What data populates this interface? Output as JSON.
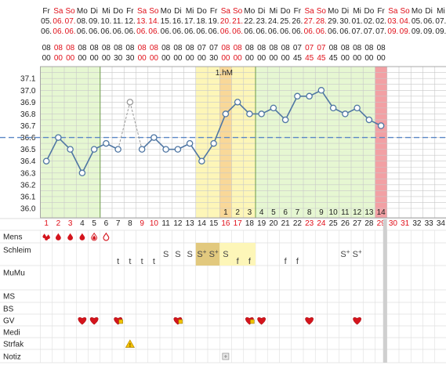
{
  "chart_data": {
    "type": "line",
    "title": "",
    "marker_label": "1.hM",
    "ylim": [
      35.9,
      37.2
    ],
    "y_ticks": [
      "37.1",
      "37.0",
      "36.9",
      "36.8",
      "36.7",
      "36.6",
      "36.5",
      "36.4",
      "36.3",
      "36.2",
      "36.1",
      "36.0"
    ],
    "coverline": 36.6,
    "header_days": [
      {
        "wd": "Fr",
        "d": "05.",
        "m": "06.",
        "h": "08",
        "mm": "00",
        "we": false
      },
      {
        "wd": "Sa",
        "d": "06.",
        "m": "06.",
        "h": "08",
        "mm": "00",
        "we": true
      },
      {
        "wd": "So",
        "d": "07.",
        "m": "06.",
        "h": "08",
        "mm": "00",
        "we": true
      },
      {
        "wd": "Mo",
        "d": "08.",
        "m": "06.",
        "h": "08",
        "mm": "00",
        "we": false
      },
      {
        "wd": "Di",
        "d": "09.",
        "m": "06.",
        "h": "08",
        "mm": "00",
        "we": false
      },
      {
        "wd": "Mi",
        "d": "10.",
        "m": "06.",
        "h": "08",
        "mm": "00",
        "we": false
      },
      {
        "wd": "Do",
        "d": "11.",
        "m": "06.",
        "h": "08",
        "mm": "30",
        "we": false
      },
      {
        "wd": "Fr",
        "d": "12.",
        "m": "06.",
        "h": "08",
        "mm": "30",
        "we": false
      },
      {
        "wd": "Sa",
        "d": "13.",
        "m": "06.",
        "h": "08",
        "mm": "00",
        "we": true
      },
      {
        "wd": "So",
        "d": "14.",
        "m": "06.",
        "h": "08",
        "mm": "00",
        "we": true
      },
      {
        "wd": "Mo",
        "d": "15.",
        "m": "06.",
        "h": "08",
        "mm": "00",
        "we": false
      },
      {
        "wd": "Di",
        "d": "16.",
        "m": "06.",
        "h": "08",
        "mm": "00",
        "we": false
      },
      {
        "wd": "Mi",
        "d": "17.",
        "m": "06.",
        "h": "08",
        "mm": "00",
        "we": false
      },
      {
        "wd": "Do",
        "d": "18.",
        "m": "06.",
        "h": "07",
        "mm": "00",
        "we": false
      },
      {
        "wd": "Fr",
        "d": "19.",
        "m": "06.",
        "h": "07",
        "mm": "30",
        "we": false
      },
      {
        "wd": "Sa",
        "d": "20.",
        "m": "06.",
        "h": "08",
        "mm": "00",
        "we": true
      },
      {
        "wd": "So",
        "d": "21.",
        "m": "06.",
        "h": "08",
        "mm": "00",
        "we": true
      },
      {
        "wd": "Mo",
        "d": "22.",
        "m": "06.",
        "h": "08",
        "mm": "00",
        "we": false
      },
      {
        "wd": "Di",
        "d": "23.",
        "m": "06.",
        "h": "08",
        "mm": "00",
        "we": false
      },
      {
        "wd": "Mi",
        "d": "24.",
        "m": "06.",
        "h": "08",
        "mm": "00",
        "we": false
      },
      {
        "wd": "Do",
        "d": "25.",
        "m": "06.",
        "h": "08",
        "mm": "00",
        "we": false
      },
      {
        "wd": "Fr",
        "d": "26.",
        "m": "06.",
        "h": "07",
        "mm": "45",
        "we": false
      },
      {
        "wd": "Sa",
        "d": "27.",
        "m": "06.",
        "h": "07",
        "mm": "45",
        "we": true
      },
      {
        "wd": "So",
        "d": "28.",
        "m": "06.",
        "h": "07",
        "mm": "45",
        "we": true
      },
      {
        "wd": "Mo",
        "d": "29.",
        "m": "06.",
        "h": "08",
        "mm": "45",
        "we": false
      },
      {
        "wd": "Di",
        "d": "30.",
        "m": "06.",
        "h": "08",
        "mm": "00",
        "we": false
      },
      {
        "wd": "Mi",
        "d": "01.",
        "m": "07.",
        "h": "08",
        "mm": "00",
        "we": false
      },
      {
        "wd": "Do",
        "d": "02.",
        "m": "07.",
        "h": "08",
        "mm": "00",
        "we": false
      },
      {
        "wd": "Fr",
        "d": "02.",
        "m": "07.",
        "h": "08",
        "mm": "00",
        "we": false
      },
      {
        "wd": "Sa",
        "d": "03.",
        "m": "09.",
        "h": "",
        "mm": "",
        "we": true
      },
      {
        "wd": "So",
        "d": "04.",
        "m": "09.",
        "h": "",
        "mm": "",
        "we": true
      },
      {
        "wd": "Mo",
        "d": "05.",
        "m": "09.",
        "h": "",
        "mm": "",
        "we": false
      },
      {
        "wd": "Di",
        "d": "06.",
        "m": "09.",
        "h": "",
        "mm": "",
        "we": false
      },
      {
        "wd": "Mi",
        "d": "07.",
        "m": "09.",
        "h": "",
        "mm": "",
        "we": false
      }
    ],
    "cycle_days": [
      "1",
      "2",
      "3",
      "4",
      "5",
      "6",
      "7",
      "8",
      "9",
      "10",
      "11",
      "12",
      "13",
      "14",
      "15",
      "16",
      "17",
      "18",
      "19",
      "20",
      "21",
      "22",
      "23",
      "24",
      "25",
      "26",
      "27",
      "28",
      "29",
      "30",
      "31",
      "32",
      "33",
      "34"
    ],
    "red_cycle_days": [
      1,
      2,
      3,
      9,
      10,
      16,
      17,
      23,
      24,
      29,
      30,
      31
    ],
    "post_ovulation_counts": [
      "1",
      "2",
      "3",
      "4",
      "5",
      "6",
      "7",
      "8",
      "9",
      "10",
      "11",
      "12",
      "13",
      "14"
    ],
    "temperatures": [
      {
        "day": 1,
        "value": 36.4
      },
      {
        "day": 2,
        "value": 36.6
      },
      {
        "day": 3,
        "value": 36.5
      },
      {
        "day": 4,
        "value": 36.3
      },
      {
        "day": 5,
        "value": 36.5
      },
      {
        "day": 6,
        "value": 36.55
      },
      {
        "day": 7,
        "value": 36.5
      },
      {
        "day": 8,
        "value": 36.9,
        "excluded": true
      },
      {
        "day": 9,
        "value": 36.5
      },
      {
        "day": 10,
        "value": 36.6
      },
      {
        "day": 11,
        "value": 36.5
      },
      {
        "day": 12,
        "value": 36.5
      },
      {
        "day": 13,
        "value": 36.55
      },
      {
        "day": 14,
        "value": 36.4
      },
      {
        "day": 15,
        "value": 36.55
      },
      {
        "day": 16,
        "value": 36.8
      },
      {
        "day": 17,
        "value": 36.9
      },
      {
        "day": 18,
        "value": 36.8
      },
      {
        "day": 19,
        "value": 36.8
      },
      {
        "day": 20,
        "value": 36.85
      },
      {
        "day": 21,
        "value": 36.75
      },
      {
        "day": 22,
        "value": 36.95
      },
      {
        "day": 23,
        "value": 36.95
      },
      {
        "day": 24,
        "value": 37.0
      },
      {
        "day": 25,
        "value": 36.85
      },
      {
        "day": 26,
        "value": 36.8
      },
      {
        "day": 27,
        "value": 36.85
      },
      {
        "day": 28,
        "value": 36.75
      },
      {
        "day": 29,
        "value": 36.7
      }
    ],
    "row_labels": [
      "Mens",
      "Schleim",
      "MuMu",
      "MS",
      "BS",
      "GV",
      "Medi",
      "Strfak",
      "Notiz"
    ],
    "mens": [
      {
        "day": 1,
        "level": "heavy"
      },
      {
        "day": 2,
        "level": "medium"
      },
      {
        "day": 3,
        "level": "medium"
      },
      {
        "day": 4,
        "level": "medium"
      },
      {
        "day": 5,
        "level": "light"
      },
      {
        "day": 6,
        "level": "spotting"
      }
    ],
    "schleim": [
      {
        "day": 7,
        "text": "t"
      },
      {
        "day": 8,
        "text": "t"
      },
      {
        "day": 9,
        "text": "t"
      },
      {
        "day": 10,
        "text": "t"
      },
      {
        "day": 11,
        "text": "S"
      },
      {
        "day": 12,
        "text": "S"
      },
      {
        "day": 13,
        "text": "S"
      },
      {
        "day": 14,
        "text": "S+"
      },
      {
        "day": 15,
        "text": "S+"
      },
      {
        "day": 16,
        "text": "S"
      },
      {
        "day": 17,
        "text": "f"
      },
      {
        "day": 18,
        "text": "f"
      },
      {
        "day": 21,
        "text": "f"
      },
      {
        "day": 22,
        "text": "f"
      },
      {
        "day": 26,
        "text": "S+"
      },
      {
        "day": 27,
        "text": "S+"
      }
    ],
    "gv": [
      4,
      5,
      7,
      12,
      18,
      19,
      23,
      27
    ],
    "gv_protected": [
      7,
      12,
      18
    ],
    "strfak": [
      8
    ],
    "notiz": [
      16
    ],
    "colors": {
      "green_phase": "#e6f7d2",
      "yellow_phase": "#fdf6b8",
      "orange_phase": "#f9d898",
      "red_phase": "#f2a0a4",
      "grid": "#c8c8c8",
      "line": "#4f76a3",
      "coverline": "#5a87c5",
      "weekend": "#e0101a",
      "heart": "#d4141c"
    }
  }
}
